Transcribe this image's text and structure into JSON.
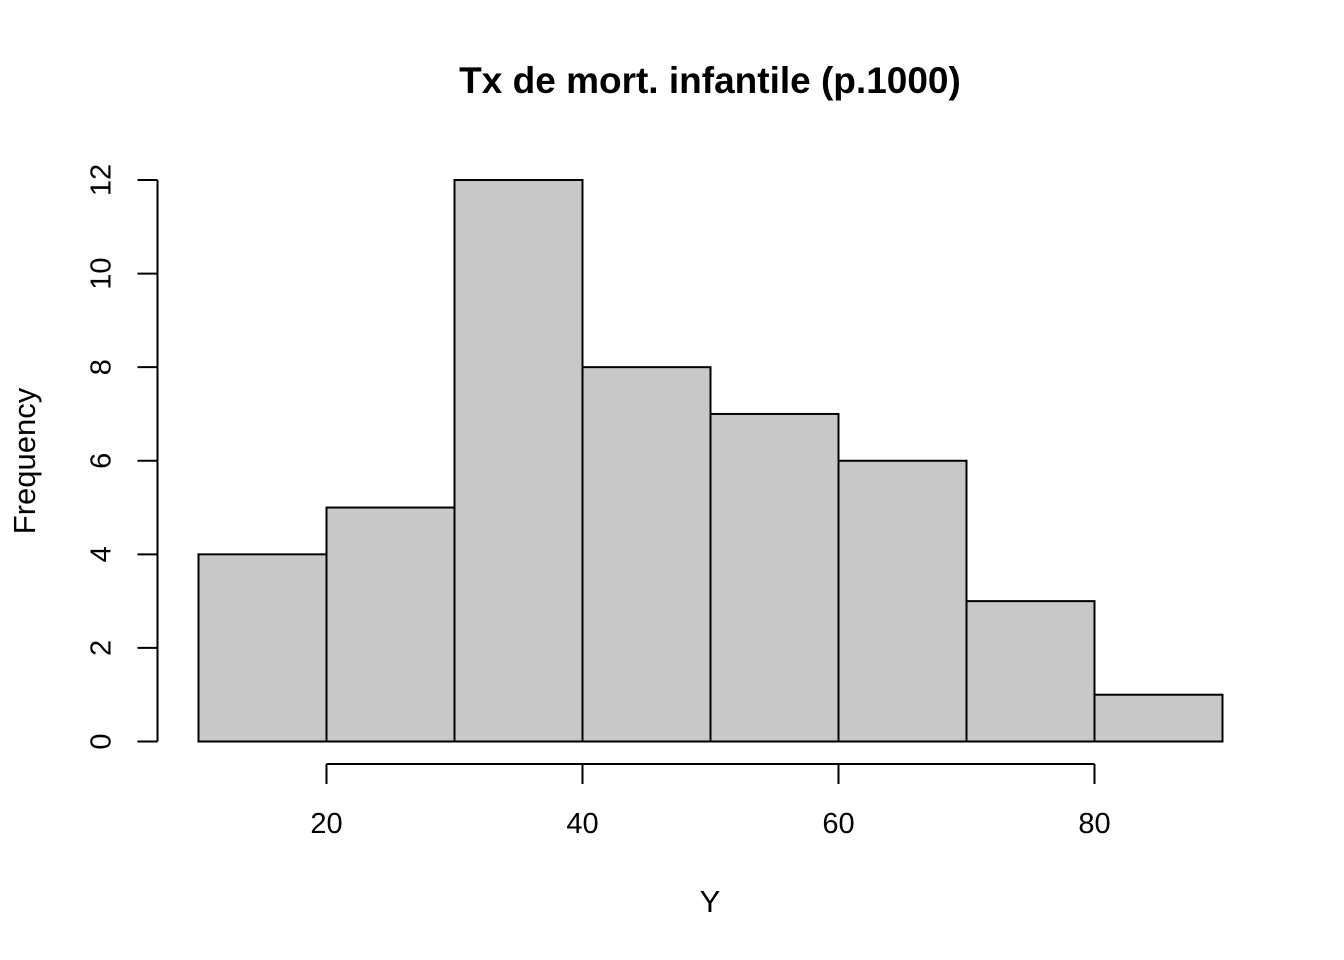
{
  "chart_data": {
    "type": "bar",
    "subtype": "histogram",
    "title": "Tx de mort. infantile (p.1000)",
    "xlabel": "Y",
    "ylabel": "Frequency",
    "bins": [
      {
        "from": 10,
        "to": 20,
        "count": 4
      },
      {
        "from": 20,
        "to": 30,
        "count": 5
      },
      {
        "from": 30,
        "to": 40,
        "count": 12
      },
      {
        "from": 40,
        "to": 50,
        "count": 8
      },
      {
        "from": 50,
        "to": 60,
        "count": 7
      },
      {
        "from": 60,
        "to": 70,
        "count": 6
      },
      {
        "from": 70,
        "to": 80,
        "count": 3
      },
      {
        "from": 80,
        "to": 90,
        "count": 1
      }
    ],
    "x_ticks": [
      "20",
      "40",
      "60",
      "80"
    ],
    "y_ticks": [
      "0",
      "2",
      "4",
      "6",
      "8",
      "10",
      "12"
    ],
    "xlim": [
      10,
      90
    ],
    "ylim": [
      0,
      12
    ],
    "grid": false,
    "bar_color": "#c8c8c8",
    "edge_color": "#000000"
  }
}
